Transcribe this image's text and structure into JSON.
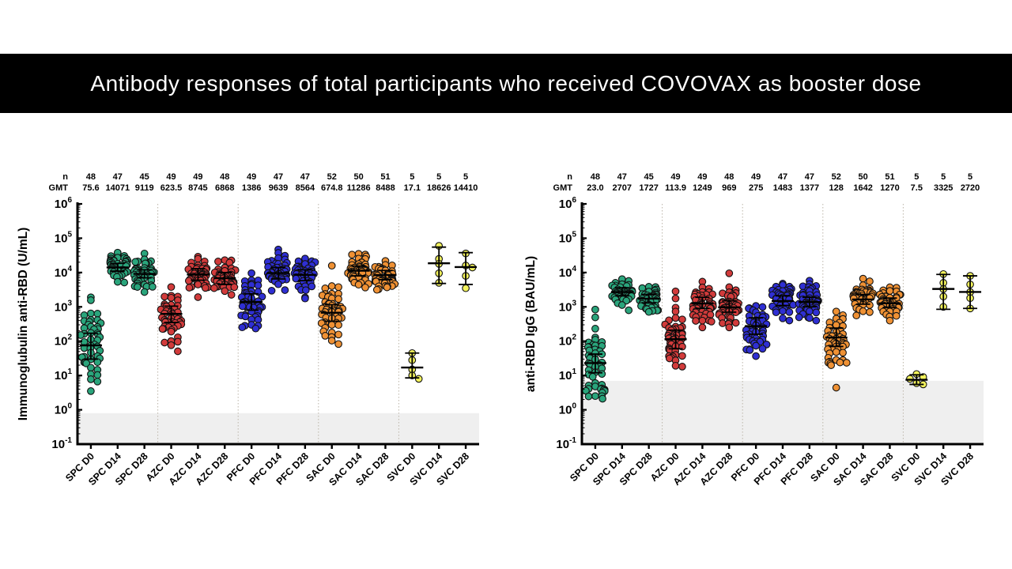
{
  "title": {
    "text": "Antibody responses of total participants who received COVOVAX as booster dose"
  },
  "chart_data": {
    "type": "scatter",
    "subtype": "beeswarm-log-dotplot",
    "grid": false,
    "legend": "none",
    "colors": {
      "SPC": "#2AA57C",
      "AZC": "#D23B3B",
      "PFC": "#2F2FD3",
      "SAC": "#EF9134",
      "SVC": "#F3F35C",
      "outline": "#111111",
      "lod_band": "#EFEFEF",
      "separator": "#BBB4A8",
      "axis": "#000000"
    },
    "y_tick_exponents": [
      6,
      5,
      4,
      3,
      2,
      1,
      0,
      -1
    ],
    "panels": [
      {
        "id": "left",
        "ylabel": "Immunoglubulin anti-RBD (U/mL)",
        "ylim_log10": [
          -1,
          6
        ],
        "lod_band_top_value": 0.8,
        "header": {
          "n_label": "n",
          "gmt_label": "GMT"
        },
        "columns": [
          {
            "label": "SPC D0",
            "group": "SPC",
            "n": 48,
            "n_text": "48",
            "gmt": 75.6,
            "gmt_text": "75.6",
            "bar": [
              30,
              75.6,
              170
            ],
            "sd": 0.75,
            "range": [
              -0.5,
              4.3
            ]
          },
          {
            "label": "SPC D14",
            "group": "SPC",
            "n": 47,
            "n_text": "47",
            "gmt": 14071,
            "gmt_text": "14071",
            "bar": [
              11000,
              14071,
              18500
            ],
            "sd": 0.22,
            "range": [
              3.55,
              4.75
            ]
          },
          {
            "label": "SPC D28",
            "group": "SPC",
            "n": 45,
            "n_text": "45",
            "gmt": 9119,
            "gmt_text": "9119",
            "bar": [
              7000,
              9119,
              12000
            ],
            "sd": 0.22,
            "range": [
              3.05,
              4.65
            ]
          },
          {
            "label": "AZC D0",
            "group": "AZC",
            "n": 49,
            "n_text": "49",
            "gmt": 623.5,
            "gmt_text": "623.5",
            "bar": [
              350,
              623.5,
              1050
            ],
            "sd": 0.45,
            "range": [
              1.45,
              4.25
            ]
          },
          {
            "label": "AZC D14",
            "group": "AZC",
            "n": 49,
            "n_text": "49",
            "gmt": 8745,
            "gmt_text": "8745",
            "bar": [
              6000,
              8745,
              13000
            ],
            "sd": 0.3,
            "range": [
              2.85,
              5.25
            ]
          },
          {
            "label": "AZC D28",
            "group": "AZC",
            "n": 48,
            "n_text": "48",
            "gmt": 6868,
            "gmt_text": "6868",
            "bar": [
              4500,
              6868,
              10000
            ],
            "sd": 0.3,
            "range": [
              2.9,
              5.1
            ]
          },
          {
            "label": "PFC D0",
            "group": "PFC",
            "n": 49,
            "n_text": "49",
            "gmt": 1386,
            "gmt_text": "1386",
            "bar": [
              800,
              1386,
              2400
            ],
            "sd": 0.42,
            "range": [
              1.5,
              4.4
            ]
          },
          {
            "label": "PFC D14",
            "group": "PFC",
            "n": 47,
            "n_text": "47",
            "gmt": 9639,
            "gmt_text": "9639",
            "bar": [
              6500,
              9639,
              14000
            ],
            "sd": 0.25,
            "range": [
              3.2,
              4.8
            ]
          },
          {
            "label": "PFC D28",
            "group": "PFC",
            "n": 47,
            "n_text": "47",
            "gmt": 8564,
            "gmt_text": "8564",
            "bar": [
              5800,
              8564,
              12000
            ],
            "sd": 0.25,
            "range": [
              3.2,
              4.7
            ]
          },
          {
            "label": "SAC D0",
            "group": "SAC",
            "n": 52,
            "n_text": "52",
            "gmt": 674.8,
            "gmt_text": "674.8",
            "bar": [
              380,
              674.8,
              1150
            ],
            "sd": 0.42,
            "range": [
              1.25,
              4.2
            ]
          },
          {
            "label": "SAC D14",
            "group": "SAC",
            "n": 50,
            "n_text": "50",
            "gmt": 11286,
            "gmt_text": "11286",
            "bar": [
              8000,
              11286,
              15500
            ],
            "sd": 0.22,
            "range": [
              3.35,
              4.7
            ]
          },
          {
            "label": "SAC D28",
            "group": "SAC",
            "n": 51,
            "n_text": "51",
            "gmt": 8488,
            "gmt_text": "8488",
            "bar": [
              6200,
              8488,
              11500
            ],
            "sd": 0.2,
            "range": [
              3.35,
              4.5
            ]
          },
          {
            "label": "SVC D0",
            "group": "SVC",
            "n": 5,
            "n_text": "5",
            "gmt": 17.1,
            "gmt_text": "17.1",
            "bar": [
              8.5,
              17.1,
              45
            ],
            "points": [
              45,
              28,
              15,
              10,
              8
            ]
          },
          {
            "label": "SVC D14",
            "group": "SVC",
            "n": 5,
            "n_text": "5",
            "gmt": 18626,
            "gmt_text": "18626",
            "bar": [
              4800,
              18626,
              55000
            ],
            "points": [
              60000,
              25000,
              18000,
              9500,
              5000
            ]
          },
          {
            "label": "SVC D28",
            "group": "SVC",
            "n": 5,
            "n_text": "5",
            "gmt": 14410,
            "gmt_text": "14410",
            "bar": [
              4500,
              14410,
              38000
            ],
            "points": [
              36000,
              16000,
              14000,
              8000,
              3500
            ]
          }
        ]
      },
      {
        "id": "right",
        "ylabel": "anti-RBD IgG (BAU/mL)",
        "ylim_log10": [
          -1,
          6
        ],
        "lod_band_top_value": 7,
        "header": {
          "n_label": "n",
          "gmt_label": "GMT"
        },
        "columns": [
          {
            "label": "SPC D0",
            "group": "SPC",
            "n": 48,
            "n_text": "48",
            "gmt": 23.0,
            "gmt_text": "23.0",
            "bar": [
              12,
              23.0,
              42
            ],
            "sd": 0.8,
            "range": [
              0.15,
              3.5
            ]
          },
          {
            "label": "SPC D14",
            "group": "SPC",
            "n": 47,
            "n_text": "47",
            "gmt": 2707,
            "gmt_text": "2707",
            "bar": [
              2100,
              2707,
              3600
            ],
            "sd": 0.2,
            "range": [
              2.9,
              3.95
            ]
          },
          {
            "label": "SPC D28",
            "group": "SPC",
            "n": 45,
            "n_text": "45",
            "gmt": 1727,
            "gmt_text": "1727",
            "bar": [
              1300,
              1727,
              2300
            ],
            "sd": 0.2,
            "range": [
              2.45,
              3.8
            ]
          },
          {
            "label": "AZC D0",
            "group": "AZC",
            "n": 49,
            "n_text": "49",
            "gmt": 113.9,
            "gmt_text": "113.9",
            "bar": [
              60,
              113.9,
              210
            ],
            "sd": 0.45,
            "range": [
              0.8,
              3.45
            ]
          },
          {
            "label": "AZC D14",
            "group": "AZC",
            "n": 49,
            "n_text": "49",
            "gmt": 1249,
            "gmt_text": "1249",
            "bar": [
              900,
              1249,
              1900
            ],
            "sd": 0.3,
            "range": [
              2.4,
              4.35
            ]
          },
          {
            "label": "AZC D28",
            "group": "AZC",
            "n": 48,
            "n_text": "48",
            "gmt": 969,
            "gmt_text": "969",
            "bar": [
              700,
              969,
              1500
            ],
            "sd": 0.3,
            "range": [
              2.4,
              4.25
            ]
          },
          {
            "label": "PFC D0",
            "group": "PFC",
            "n": 49,
            "n_text": "49",
            "gmt": 275,
            "gmt_text": "275",
            "bar": [
              160,
              275,
              480
            ],
            "sd": 0.4,
            "range": [
              1.45,
              3.55
            ]
          },
          {
            "label": "PFC D14",
            "group": "PFC",
            "n": 47,
            "n_text": "47",
            "gmt": 1483,
            "gmt_text": "1483",
            "bar": [
              1100,
              1483,
              2100
            ],
            "sd": 0.25,
            "range": [
              2.6,
              4.05
            ]
          },
          {
            "label": "PFC D28",
            "group": "PFC",
            "n": 47,
            "n_text": "47",
            "gmt": 1377,
            "gmt_text": "1377",
            "bar": [
              1000,
              1377,
              1900
            ],
            "sd": 0.25,
            "range": [
              2.6,
              4.05
            ]
          },
          {
            "label": "SAC D0",
            "group": "SAC",
            "n": 52,
            "n_text": "52",
            "gmt": 128,
            "gmt_text": "128",
            "bar": [
              70,
              128,
              240
            ],
            "sd": 0.45,
            "range": [
              0.05,
              3.35
            ]
          },
          {
            "label": "SAC D14",
            "group": "SAC",
            "n": 50,
            "n_text": "50",
            "gmt": 1642,
            "gmt_text": "1642",
            "bar": [
              1200,
              1642,
              2300
            ],
            "sd": 0.22,
            "range": [
              2.7,
              4.1
            ]
          },
          {
            "label": "SAC D28",
            "group": "SAC",
            "n": 51,
            "n_text": "51",
            "gmt": 1270,
            "gmt_text": "1270",
            "bar": [
              950,
              1270,
              1800
            ],
            "sd": 0.22,
            "range": [
              2.6,
              3.95
            ]
          },
          {
            "label": "SVC D0",
            "group": "SVC",
            "n": 5,
            "n_text": "5",
            "gmt": 7.5,
            "gmt_text": "7.5",
            "bar": [
              5.5,
              7.5,
              10.5
            ],
            "points": [
              11,
              9,
              8,
              6,
              5.5
            ]
          },
          {
            "label": "SVC D14",
            "group": "SVC",
            "n": 5,
            "n_text": "5",
            "gmt": 3325,
            "gmt_text": "3325",
            "bar": [
              850,
              3325,
              8800
            ],
            "points": [
              9000,
              5000,
              3300,
              2000,
              1000
            ]
          },
          {
            "label": "SVC D28",
            "group": "SVC",
            "n": 5,
            "n_text": "5",
            "gmt": 2720,
            "gmt_text": "2720",
            "bar": [
              900,
              2720,
              8000
            ],
            "points": [
              8000,
              4500,
              2700,
              1800,
              900
            ]
          }
        ]
      }
    ]
  }
}
